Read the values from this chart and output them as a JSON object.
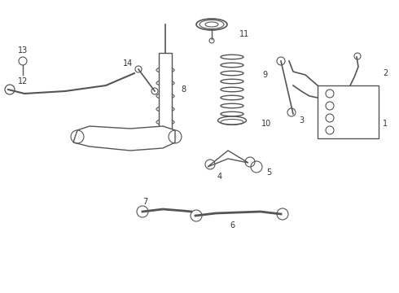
{
  "title": "",
  "bg_color": "#ffffff",
  "line_color": "#555555",
  "label_color": "#333333",
  "fig_width": 4.9,
  "fig_height": 3.6,
  "dpi": 100,
  "parts": {
    "part1_label": "1",
    "part2_label": "2",
    "part3_label": "3",
    "part4_label": "4",
    "part5_label": "5",
    "part6_label": "6",
    "part7_label": "7",
    "part8_label": "8",
    "part9_label": "9",
    "part10_label": "10",
    "part11_label": "11",
    "part12_label": "12",
    "part13_label": "13",
    "part14_label": "14"
  }
}
